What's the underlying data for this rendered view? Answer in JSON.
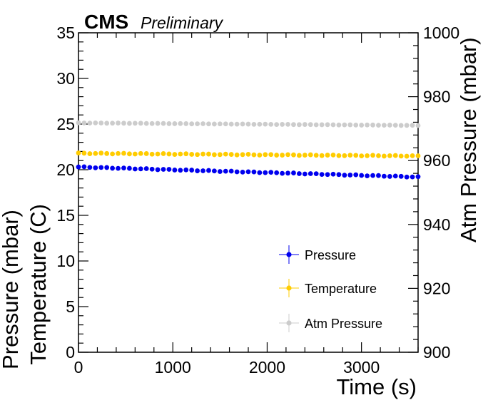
{
  "chart_data": {
    "type": "scatter",
    "header": {
      "experiment": "CMS",
      "status": "Preliminary"
    },
    "xlabel": "Time (s)",
    "ylabel_left": [
      "Pressure (mbar)",
      "Temperature (C)"
    ],
    "ylabel_right": "Atm Pressure (mbar)",
    "xlim": [
      0,
      3600
    ],
    "ylim_left": [
      0,
      35
    ],
    "ylim_right": [
      900,
      1000
    ],
    "x_ticks": [
      0,
      1000,
      2000,
      3000
    ],
    "x_tick_labels": [
      "0",
      "1000",
      "2000",
      "3000"
    ],
    "y_left_ticks": [
      0,
      5,
      10,
      15,
      20,
      25,
      30,
      35
    ],
    "y_left_tick_labels": [
      "0",
      "5",
      "10",
      "15",
      "20",
      "25",
      "30",
      "35"
    ],
    "y_right_ticks": [
      900,
      920,
      940,
      960,
      980,
      1000
    ],
    "y_right_tick_labels": [
      "900",
      "920",
      "940",
      "960",
      "980",
      "1000"
    ],
    "legend_position": "bottom-right",
    "grid": false,
    "series": [
      {
        "name": "Pressure",
        "color": "#0000ee",
        "axis": "left",
        "x_start": 0,
        "x_step": 60,
        "count": 61,
        "y_start": 20.3,
        "y_end": 19.2
      },
      {
        "name": "Temperature",
        "color": "#ffcc00",
        "axis": "left",
        "x_start": 0,
        "x_step": 60,
        "count": 61,
        "y_start": 21.8,
        "y_end": 21.5
      },
      {
        "name": "Atm Pressure",
        "color": "#cccccc",
        "axis": "right",
        "x_start": 0,
        "x_step": 60,
        "count": 61,
        "y_start": 971.8,
        "y_end": 971.0
      }
    ]
  }
}
